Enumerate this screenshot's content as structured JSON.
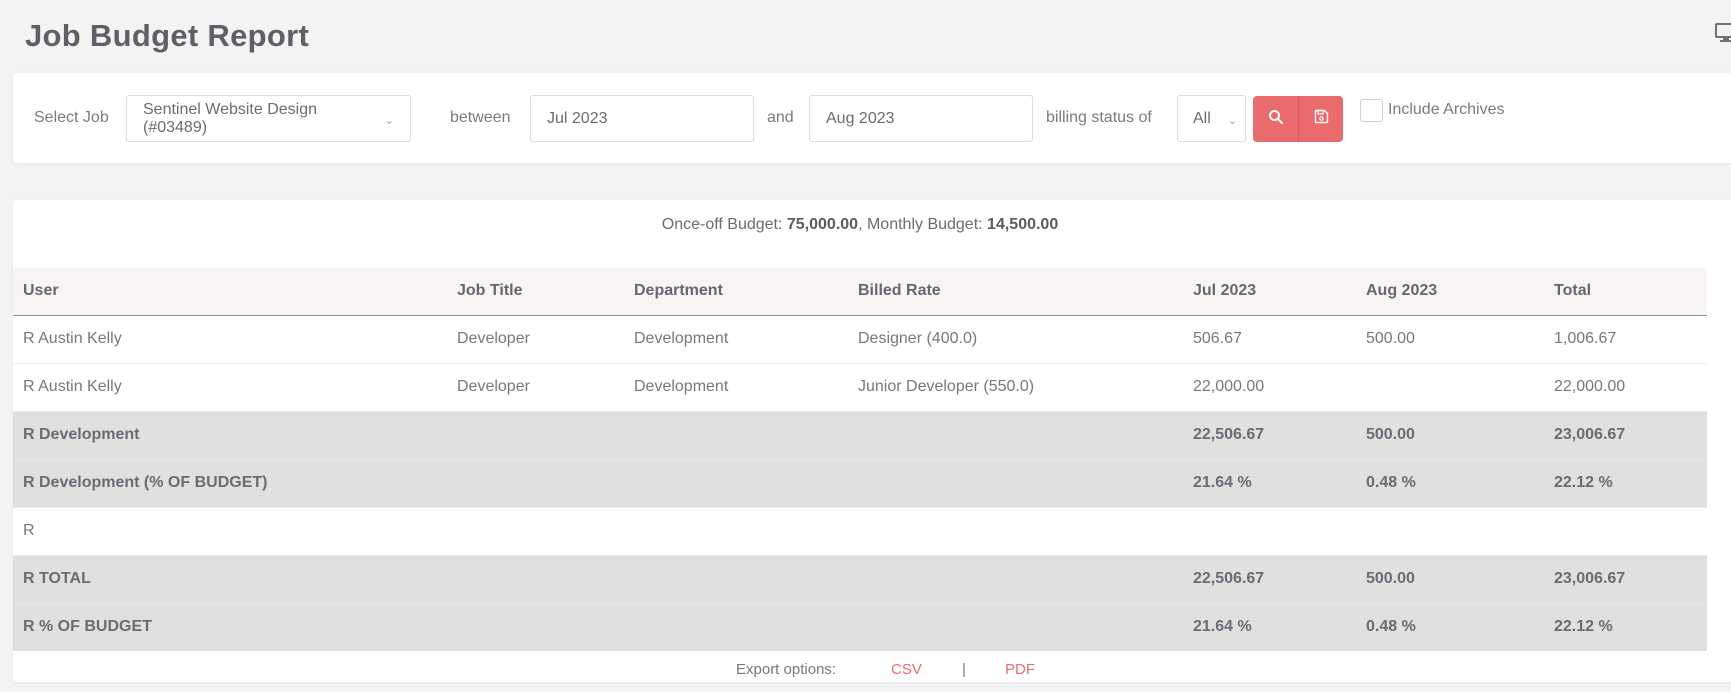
{
  "page": {
    "title": "Job Budget Report"
  },
  "filters": {
    "select_job_label": "Select Job",
    "job_value": "Sentinel Website Design (#03489)",
    "between_label": "between",
    "start_value": "Jul 2023",
    "and_label": "and",
    "end_value": "Aug 2023",
    "billing_label": "billing status of",
    "billing_value": "All",
    "include_archives_label": "Include Archives",
    "include_archives_checked": false,
    "accent_color": "#ea6b6e"
  },
  "budget": {
    "once_off_label": "Once-off Budget: ",
    "once_off_value": "75,000.00",
    "monthly_label": ", Monthly Budget: ",
    "monthly_value": "14,500.00"
  },
  "table": {
    "headers": [
      "User",
      "Job Title",
      "Department",
      "Billed Rate",
      "Jul 2023",
      "Aug 2023",
      "Total"
    ],
    "rows": [
      [
        "R Austin Kelly",
        "Developer",
        "Development",
        "Designer (400.0)",
        "506.67",
        "500.00",
        "1,006.67"
      ],
      [
        "R Austin Kelly",
        "Developer",
        "Development",
        "Junior Developer (550.0)",
        "22,000.00",
        "",
        "22,000.00"
      ],
      [
        "R Development",
        "",
        "",
        "",
        "22,506.67",
        "500.00",
        "23,006.67"
      ],
      [
        "R Development (% OF BUDGET)",
        "",
        "",
        "",
        "21.64 %",
        "0.48 %",
        "22.12 %"
      ],
      [
        "R",
        "",
        "",
        "",
        "",
        "",
        ""
      ],
      [
        "R TOTAL",
        "",
        "",
        "",
        "22,506.67",
        "500.00",
        "23,006.67"
      ],
      [
        "R % OF BUDGET",
        "",
        "",
        "",
        "21.64 %",
        "0.48 %",
        "22.12 %"
      ]
    ],
    "summary_row_color": "#e1e0df"
  },
  "export": {
    "label": "Export options:",
    "csv": "CSV",
    "separator": "|",
    "pdf": "PDF"
  }
}
